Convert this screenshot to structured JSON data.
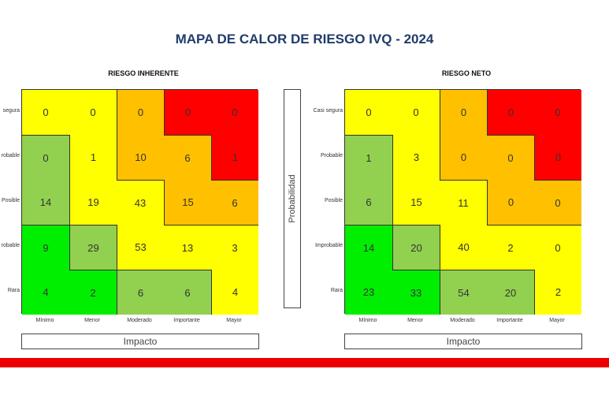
{
  "title": "MAPA DE CALOR DE RIESGO IVQ - 2024",
  "y_axis_title": "Probabilidad",
  "colors": {
    "red": "#ff0000",
    "orange": "#ffc000",
    "yellow": "#ffff00",
    "lightgreen": "#92d050",
    "green": "#00ee00",
    "footer": "#ee0000",
    "title": "#1f3c6b"
  },
  "chart_data": [
    {
      "type": "heatmap",
      "title": "RIESGO INHERENTE",
      "xlabel": "Impacto",
      "ylabel": "",
      "x_categories": [
        "Mínimo",
        "Menor",
        "Moderado",
        "Importante",
        "Mayor"
      ],
      "y_categories": [
        "segura",
        "robable",
        "Posible",
        "robable",
        "Rara"
      ],
      "values": [
        [
          0,
          0,
          0,
          0,
          0
        ],
        [
          0,
          1,
          10,
          6,
          1
        ],
        [
          14,
          19,
          43,
          15,
          6
        ],
        [
          9,
          29,
          53,
          13,
          3
        ],
        [
          4,
          2,
          6,
          6,
          4
        ]
      ],
      "color_levels": [
        [
          "yellow",
          "yellow",
          "orange",
          "red",
          "red"
        ],
        [
          "lightgreen",
          "yellow",
          "orange",
          "orange",
          "red"
        ],
        [
          "lightgreen",
          "yellow",
          "yellow",
          "orange",
          "orange"
        ],
        [
          "green",
          "lightgreen",
          "yellow",
          "yellow",
          "yellow"
        ],
        [
          "green",
          "green",
          "lightgreen",
          "lightgreen",
          "yellow"
        ]
      ]
    },
    {
      "type": "heatmap",
      "title": "RIESGO NETO",
      "xlabel": "Impacto",
      "ylabel": "Probabilidad",
      "x_categories": [
        "Mínimo",
        "Menor",
        "Moderado",
        "Importante",
        "Mayor"
      ],
      "y_categories": [
        "Casi segura",
        "Probable",
        "Posible",
        "Improbable",
        "Rara"
      ],
      "values": [
        [
          0,
          0,
          0,
          0,
          0
        ],
        [
          1,
          3,
          0,
          0,
          0
        ],
        [
          6,
          15,
          11,
          0,
          0
        ],
        [
          14,
          20,
          40,
          2,
          0
        ],
        [
          23,
          33,
          54,
          20,
          2
        ]
      ],
      "color_levels": [
        [
          "yellow",
          "yellow",
          "orange",
          "red",
          "red"
        ],
        [
          "lightgreen",
          "yellow",
          "orange",
          "orange",
          "red"
        ],
        [
          "lightgreen",
          "yellow",
          "yellow",
          "orange",
          "orange"
        ],
        [
          "green",
          "lightgreen",
          "yellow",
          "yellow",
          "yellow"
        ],
        [
          "green",
          "green",
          "lightgreen",
          "lightgreen",
          "yellow"
        ]
      ]
    }
  ]
}
